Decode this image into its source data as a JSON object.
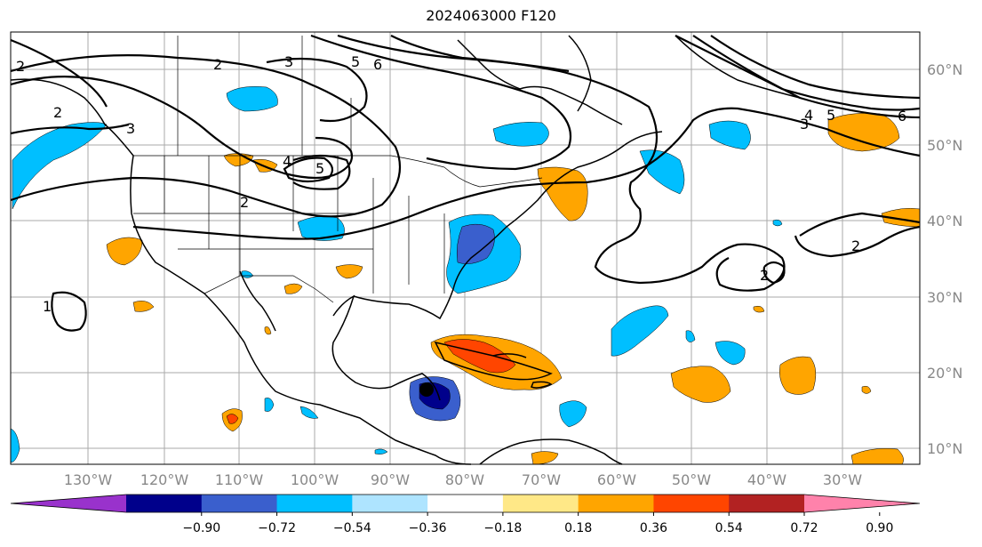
{
  "title": "2024063000 F120",
  "map": {
    "lon_labels": [
      "130°W",
      "120°W",
      "110°W",
      "100°W",
      "90°W",
      "80°W",
      "70°W",
      "60°W",
      "50°W",
      "40°W",
      "30°W"
    ],
    "lat_labels": [
      "60°N",
      "50°N",
      "40°N",
      "30°N",
      "20°N",
      "10°N"
    ],
    "contour_labels": [
      "2",
      "2",
      "2",
      "2",
      "2",
      "3",
      "3",
      "3",
      "4",
      "4",
      "5",
      "5",
      "5",
      "6",
      "6",
      "1",
      "2"
    ],
    "grid": true
  },
  "colorbar": {
    "colors": [
      "#9932cc",
      "#00008b",
      "#3a5fcd",
      "#00bfff",
      "#aee4ff",
      "#ffffff",
      "#ffe887",
      "#ffa500",
      "#ff4500",
      "#b22222",
      "#ff82ab"
    ],
    "tick_labels": [
      "−0.90",
      "−0.72",
      "−0.54",
      "−0.36",
      "−0.18",
      "0.18",
      "0.36",
      "0.54",
      "0.72",
      "0.90"
    ]
  }
}
